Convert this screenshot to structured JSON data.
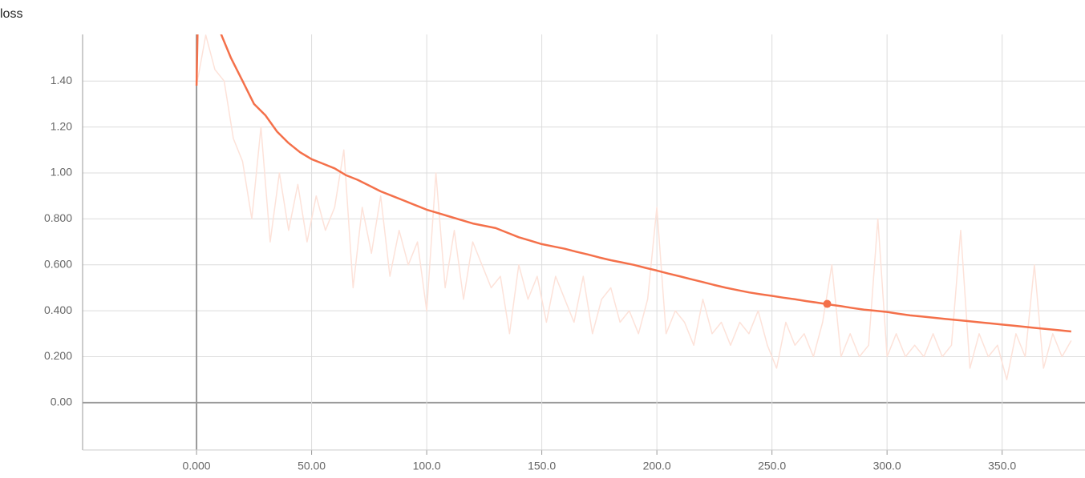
{
  "chart_data": {
    "type": "line",
    "title": "loss",
    "xlim": [
      -49.5,
      386
    ],
    "ylim": [
      -0.206,
      1.603
    ],
    "xticks": [
      {
        "value": 0,
        "label": "0.000"
      },
      {
        "value": 50,
        "label": "50.00"
      },
      {
        "value": 100,
        "label": "100.0"
      },
      {
        "value": 150,
        "label": "150.0"
      },
      {
        "value": 200,
        "label": "200.0"
      },
      {
        "value": 250,
        "label": "250.0"
      },
      {
        "value": 300,
        "label": "300.0"
      },
      {
        "value": 350,
        "label": "350.0"
      }
    ],
    "yticks": [
      {
        "value": 0,
        "label": "0.00"
      },
      {
        "value": 0.2,
        "label": "0.200"
      },
      {
        "value": 0.4,
        "label": "0.400"
      },
      {
        "value": 0.6,
        "label": "0.600"
      },
      {
        "value": 0.8,
        "label": "0.800"
      },
      {
        "value": 1.0,
        "label": "1.00"
      },
      {
        "value": 1.2,
        "label": "1.20"
      },
      {
        "value": 1.4,
        "label": "1.40"
      }
    ],
    "grid": true,
    "series": [
      {
        "color": "#fde2d9",
        "x": [
          0,
          4,
          8,
          12,
          16,
          20,
          24,
          28,
          32,
          36,
          40,
          44,
          48,
          52,
          56,
          60,
          64,
          68,
          72,
          76,
          80,
          84,
          88,
          92,
          96,
          100,
          104,
          108,
          112,
          116,
          120,
          124,
          128,
          132,
          136,
          140,
          144,
          148,
          152,
          156,
          160,
          164,
          168,
          172,
          176,
          180,
          184,
          188,
          192,
          196,
          200,
          204,
          208,
          212,
          216,
          220,
          224,
          228,
          232,
          236,
          240,
          244,
          248,
          252,
          256,
          260,
          264,
          268,
          272,
          276,
          280,
          284,
          288,
          292,
          296,
          300,
          304,
          308,
          312,
          316,
          320,
          324,
          328,
          332,
          336,
          340,
          344,
          348,
          352,
          356,
          360,
          364,
          368,
          372,
          376,
          380
        ],
        "values": [
          1.38,
          1.6,
          1.45,
          1.4,
          1.15,
          1.05,
          0.8,
          1.2,
          0.7,
          1.0,
          0.75,
          0.95,
          0.7,
          0.9,
          0.75,
          0.85,
          1.1,
          0.5,
          0.85,
          0.65,
          0.9,
          0.55,
          0.75,
          0.6,
          0.7,
          0.4,
          1.0,
          0.5,
          0.75,
          0.45,
          0.7,
          0.6,
          0.5,
          0.55,
          0.3,
          0.6,
          0.45,
          0.55,
          0.35,
          0.55,
          0.45,
          0.35,
          0.55,
          0.3,
          0.45,
          0.5,
          0.35,
          0.4,
          0.3,
          0.45,
          0.85,
          0.3,
          0.4,
          0.35,
          0.25,
          0.45,
          0.3,
          0.35,
          0.25,
          0.35,
          0.3,
          0.4,
          0.25,
          0.15,
          0.35,
          0.25,
          0.3,
          0.2,
          0.35,
          0.6,
          0.2,
          0.3,
          0.2,
          0.25,
          0.8,
          0.2,
          0.3,
          0.2,
          0.25,
          0.2,
          0.3,
          0.2,
          0.25,
          0.75,
          0.15,
          0.3,
          0.2,
          0.25,
          0.1,
          0.3,
          0.2,
          0.6,
          0.15,
          0.3,
          0.2,
          0.27
        ]
      },
      {
        "color": "#f4704a",
        "x": [
          0,
          1,
          5,
          10,
          15,
          20,
          25,
          30,
          35,
          40,
          45,
          50,
          55,
          60,
          65,
          70,
          75,
          80,
          85,
          90,
          95,
          100,
          105,
          110,
          115,
          120,
          125,
          130,
          135,
          140,
          145,
          150,
          155,
          160,
          165,
          170,
          175,
          180,
          185,
          190,
          195,
          200,
          205,
          210,
          215,
          220,
          225,
          230,
          235,
          240,
          245,
          250,
          255,
          260,
          265,
          270,
          275,
          280,
          285,
          290,
          295,
          300,
          305,
          310,
          315,
          320,
          325,
          330,
          335,
          340,
          345,
          350,
          355,
          360,
          365,
          370,
          375,
          380
        ],
        "values": [
          1.38,
          1.9,
          1.75,
          1.62,
          1.5,
          1.4,
          1.3,
          1.25,
          1.18,
          1.13,
          1.09,
          1.06,
          1.04,
          1.02,
          0.99,
          0.97,
          0.945,
          0.92,
          0.9,
          0.88,
          0.86,
          0.84,
          0.825,
          0.81,
          0.795,
          0.78,
          0.77,
          0.76,
          0.74,
          0.72,
          0.705,
          0.69,
          0.68,
          0.67,
          0.657,
          0.645,
          0.632,
          0.62,
          0.61,
          0.6,
          0.587,
          0.575,
          0.562,
          0.55,
          0.537,
          0.525,
          0.512,
          0.5,
          0.49,
          0.48,
          0.472,
          0.465,
          0.457,
          0.45,
          0.442,
          0.435,
          0.427,
          0.42,
          0.412,
          0.405,
          0.4,
          0.395,
          0.387,
          0.38,
          0.375,
          0.37,
          0.365,
          0.36,
          0.355,
          0.35,
          0.345,
          0.34,
          0.335,
          0.33,
          0.325,
          0.32,
          0.315,
          0.31
        ]
      }
    ],
    "highlight": {
      "x": 274,
      "y": 0.43,
      "color": "#f4704a"
    }
  }
}
